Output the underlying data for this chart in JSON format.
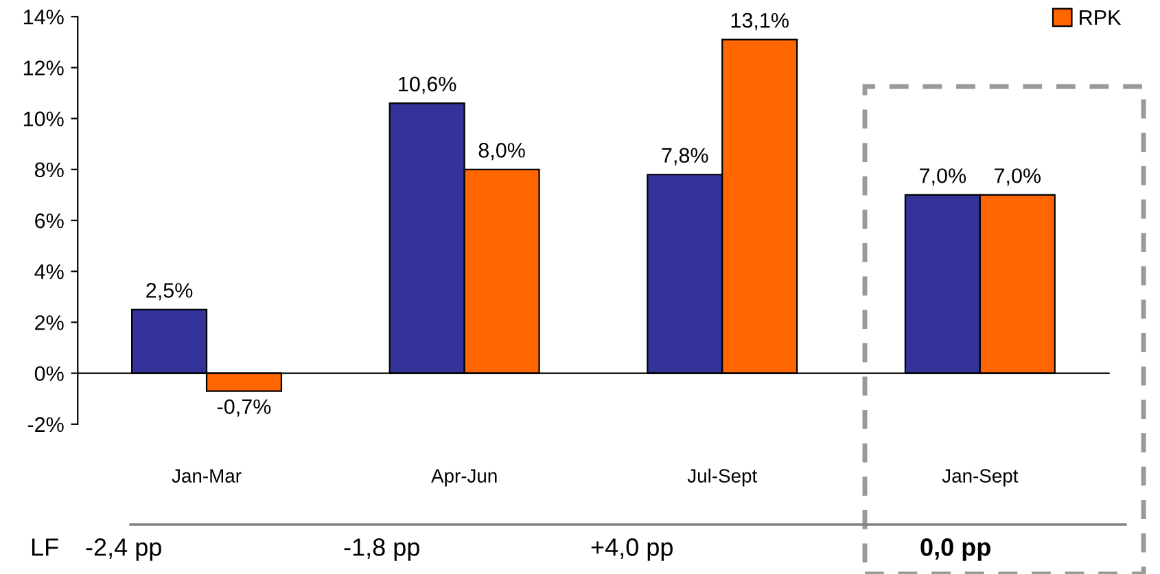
{
  "chart_data": {
    "type": "bar",
    "categories": [
      "Jan-Mar",
      "Apr-Jun",
      "Jul-Sept",
      "Jan-Sept"
    ],
    "series": [
      {
        "color": "#333399",
        "values": [
          2.5,
          10.6,
          7.8,
          7.0
        ],
        "value_labels": [
          "2,5%",
          "10,6%",
          "7,8%",
          "7,0%"
        ]
      },
      {
        "name": "RPK",
        "color": "#ff6600",
        "values": [
          -0.7,
          8.0,
          13.1,
          7.0
        ],
        "value_labels": [
          "-0,7%",
          "8,0%",
          "13,1%",
          "7,0%"
        ]
      }
    ],
    "ylim": [
      -2,
      14
    ],
    "yticks": [
      {
        "value": -2,
        "label": "-2%"
      },
      {
        "value": 0,
        "label": "0%"
      },
      {
        "value": 2,
        "label": "2%"
      },
      {
        "value": 4,
        "label": "4%"
      },
      {
        "value": 6,
        "label": "6%"
      },
      {
        "value": 8,
        "label": "8%"
      },
      {
        "value": 10,
        "label": "10%"
      },
      {
        "value": 12,
        "label": "12%"
      },
      {
        "value": 14,
        "label": "14%"
      }
    ],
    "legend": "top right",
    "annotations": [
      "LF",
      "-2,4 pp",
      "-1,8 pp",
      "+4,0 pp",
      "0,0 pp"
    ]
  }
}
